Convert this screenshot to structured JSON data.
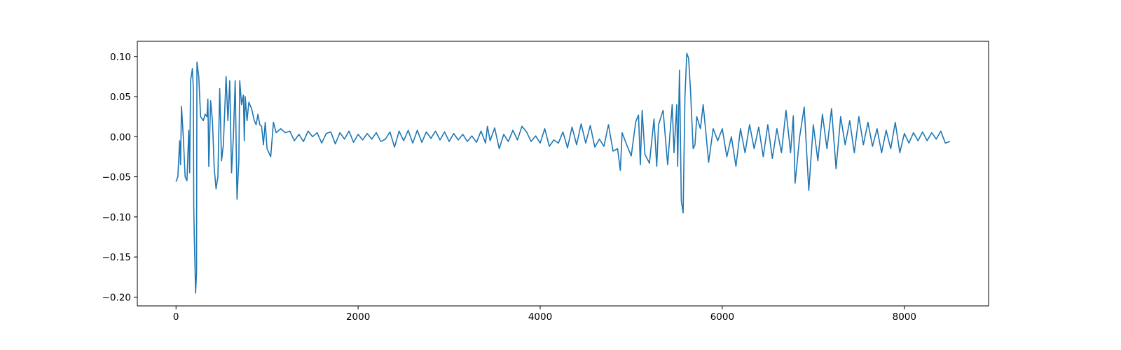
{
  "chart_data": {
    "type": "line",
    "color": "#1f77b4",
    "xlim": [
      -425,
      8925
    ],
    "ylim": [
      -0.211,
      0.119
    ],
    "xticks": [
      0,
      2000,
      4000,
      6000,
      8000
    ],
    "yticks": [
      {
        "value": -0.2,
        "label": "−0.20"
      },
      {
        "value": -0.15,
        "label": "−0.15"
      },
      {
        "value": -0.1,
        "label": "−0.10"
      },
      {
        "value": -0.05,
        "label": "−0.05"
      },
      {
        "value": 0,
        "label": "0.00"
      },
      {
        "value": 0.05,
        "label": "0.05"
      },
      {
        "value": 0.1,
        "label": "0.10"
      }
    ],
    "x": [
      0,
      20,
      40,
      50,
      60,
      80,
      100,
      120,
      140,
      150,
      160,
      180,
      190,
      195,
      200,
      215,
      225,
      230,
      250,
      270,
      300,
      320,
      340,
      350,
      360,
      380,
      400,
      420,
      440,
      460,
      480,
      500,
      520,
      550,
      570,
      590,
      610,
      630,
      650,
      670,
      690,
      700,
      720,
      740,
      750,
      760,
      780,
      800,
      830,
      860,
      880,
      900,
      920,
      940,
      960,
      980,
      1000,
      1040,
      1070,
      1100,
      1150,
      1200,
      1250,
      1300,
      1350,
      1400,
      1450,
      1500,
      1550,
      1600,
      1650,
      1700,
      1750,
      1800,
      1850,
      1900,
      1950,
      2000,
      2050,
      2100,
      2150,
      2200,
      2250,
      2300,
      2350,
      2400,
      2450,
      2500,
      2550,
      2600,
      2650,
      2700,
      2750,
      2800,
      2850,
      2900,
      2950,
      3000,
      3050,
      3100,
      3150,
      3200,
      3250,
      3300,
      3350,
      3400,
      3420,
      3450,
      3500,
      3550,
      3600,
      3650,
      3700,
      3750,
      3800,
      3850,
      3900,
      3950,
      4000,
      4050,
      4100,
      4150,
      4200,
      4250,
      4300,
      4350,
      4400,
      4450,
      4500,
      4550,
      4600,
      4650,
      4700,
      4750,
      4800,
      4850,
      4880,
      4900,
      4950,
      5000,
      5050,
      5080,
      5100,
      5120,
      5150,
      5200,
      5250,
      5280,
      5300,
      5350,
      5400,
      5450,
      5470,
      5500,
      5510,
      5530,
      5550,
      5570,
      5590,
      5610,
      5630,
      5650,
      5680,
      5700,
      5720,
      5760,
      5790,
      5820,
      5850,
      5900,
      5950,
      6000,
      6050,
      6100,
      6150,
      6200,
      6250,
      6300,
      6350,
      6400,
      6450,
      6500,
      6550,
      6600,
      6650,
      6700,
      6750,
      6780,
      6800,
      6850,
      6900,
      6950,
      7000,
      7050,
      7100,
      7150,
      7200,
      7250,
      7300,
      7350,
      7400,
      7450,
      7500,
      7550,
      7600,
      7650,
      7700,
      7750,
      7800,
      7850,
      7900,
      7950,
      8000,
      8050,
      8100,
      8150,
      8200,
      8250,
      8300,
      8350,
      8400,
      8450,
      8500
    ],
    "values": [
      -0.056,
      -0.05,
      -0.005,
      -0.035,
      0.038,
      0.0,
      -0.05,
      -0.055,
      0.008,
      -0.045,
      0.07,
      0.085,
      0.06,
      -0.088,
      -0.12,
      -0.195,
      -0.17,
      0.093,
      0.075,
      0.025,
      0.02,
      0.028,
      0.025,
      0.047,
      -0.037,
      0.045,
      0.02,
      -0.04,
      -0.065,
      -0.05,
      0.06,
      -0.03,
      -0.01,
      0.075,
      0.02,
      0.07,
      -0.045,
      0.0,
      0.07,
      -0.078,
      -0.03,
      0.07,
      0.04,
      0.052,
      -0.005,
      0.05,
      0.02,
      0.043,
      0.035,
      0.02,
      0.015,
      0.028,
      0.015,
      0.013,
      -0.01,
      0.018,
      -0.015,
      -0.025,
      0.018,
      0.005,
      0.01,
      0.005,
      0.007,
      -0.005,
      0.003,
      -0.006,
      0.007,
      0.0,
      0.005,
      -0.008,
      0.004,
      0.006,
      -0.009,
      0.005,
      -0.003,
      0.007,
      -0.007,
      0.003,
      -0.004,
      0.004,
      -0.003,
      0.005,
      -0.006,
      -0.003,
      0.006,
      -0.013,
      0.007,
      -0.005,
      0.008,
      -0.008,
      0.008,
      -0.007,
      0.006,
      -0.002,
      0.007,
      -0.004,
      0.006,
      -0.006,
      0.004,
      -0.004,
      0.003,
      -0.006,
      0.001,
      -0.007,
      0.007,
      -0.008,
      0.013,
      -0.005,
      0.011,
      -0.015,
      0.003,
      -0.006,
      0.008,
      -0.004,
      0.013,
      0.006,
      -0.006,
      0.001,
      -0.008,
      0.01,
      -0.012,
      -0.004,
      -0.008,
      0.006,
      -0.014,
      0.012,
      -0.01,
      0.016,
      -0.008,
      0.014,
      -0.013,
      -0.003,
      -0.012,
      0.015,
      -0.018,
      -0.015,
      -0.042,
      0.005,
      -0.01,
      -0.024,
      0.019,
      0.027,
      -0.035,
      0.033,
      -0.022,
      -0.033,
      0.022,
      -0.037,
      0.015,
      0.033,
      -0.035,
      0.04,
      -0.02,
      0.04,
      -0.037,
      0.083,
      -0.08,
      -0.095,
      0.05,
      0.104,
      0.098,
      0.06,
      -0.015,
      -0.01,
      0.025,
      0.01,
      0.04,
      0.005,
      -0.032,
      0.01,
      -0.005,
      0.01,
      -0.025,
      0.0,
      -0.037,
      0.01,
      -0.02,
      0.015,
      -0.015,
      0.012,
      -0.025,
      0.015,
      -0.027,
      0.01,
      -0.02,
      0.033,
      -0.02,
      0.026,
      -0.058,
      0.0,
      0.037,
      -0.067,
      0.015,
      -0.03,
      0.028,
      -0.015,
      0.035,
      -0.04,
      0.025,
      -0.01,
      0.02,
      -0.02,
      0.025,
      -0.01,
      0.018,
      -0.012,
      0.01,
      -0.02,
      0.008,
      -0.015,
      0.018,
      -0.02,
      0.004,
      -0.008,
      0.005,
      -0.005,
      0.006,
      -0.005,
      0.005,
      -0.003,
      0.007,
      -0.008,
      -0.006
    ]
  }
}
